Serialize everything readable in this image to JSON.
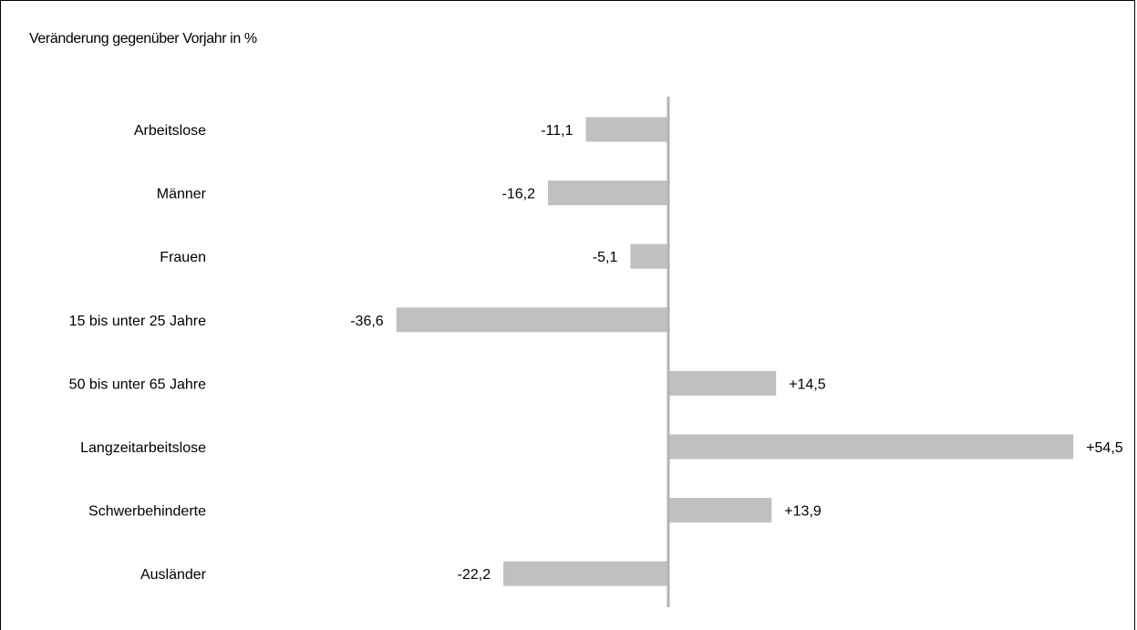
{
  "chart_data": {
    "type": "bar",
    "orientation": "horizontal",
    "subtitle": "Veränderung gegenüber Vorjahr in %",
    "categories": [
      "Arbeitslose",
      "Männer",
      "Frauen",
      "15 bis unter 25 Jahre",
      "50 bis unter 65 Jahre",
      "Langzeitarbeitslose",
      "Schwerbehinderte",
      "Ausländer"
    ],
    "values": [
      -11.1,
      -16.2,
      -5.1,
      -36.6,
      14.5,
      54.5,
      13.9,
      -22.2
    ],
    "value_labels": [
      "-11,1",
      "-16,2",
      "-5,1",
      "-36,6",
      "+14,5",
      "+54,5",
      "+13,9",
      "-22,2"
    ],
    "xlim": [
      -36.6,
      54.5
    ],
    "grid": false,
    "legend": "none",
    "bar_color": "#c0c0c0",
    "axis_color": "#b3b3b3"
  }
}
